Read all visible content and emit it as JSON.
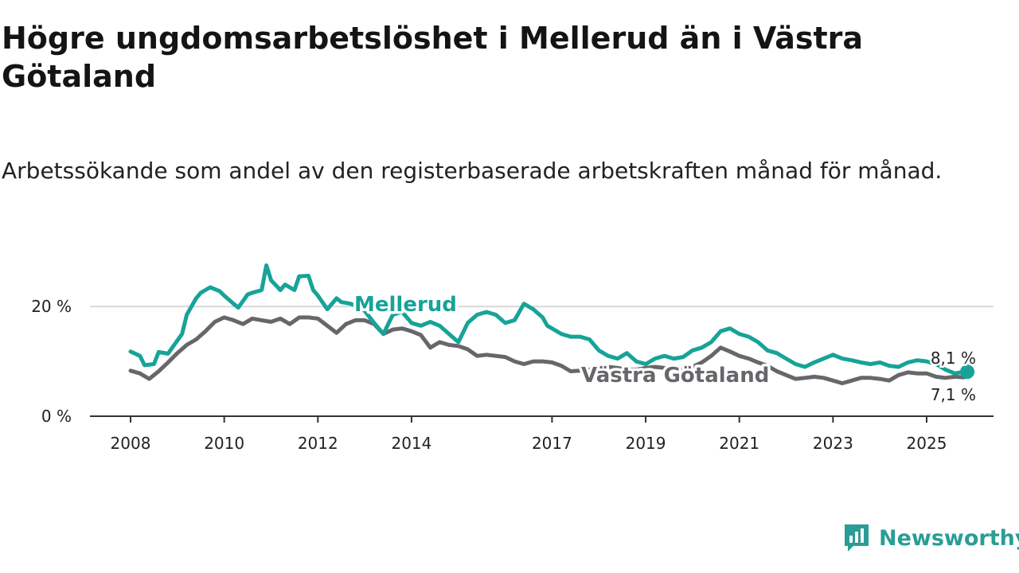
{
  "title": "Högre ungdomsarbetslöshet i Mellerud än i Västra Götaland",
  "subtitle": "Arbetssökande som andel av den registerbaserade arbetskraften månad för månad.",
  "brand": {
    "name": "Newsworthy",
    "color": "#2a9d96",
    "icon": "newsworthy-logo-icon"
  },
  "chart_data": {
    "type": "line",
    "title": "Högre ungdomsarbetslöshet i Mellerud än i Västra Götaland",
    "xlabel": "",
    "ylabel": "",
    "ylim": [
      0,
      28
    ],
    "y_ticks": [
      0,
      20
    ],
    "y_tick_labels": [
      "0 %",
      "20 %"
    ],
    "x_ticks": [
      2008,
      2010,
      2012,
      2014,
      2017,
      2019,
      2021,
      2023,
      2025
    ],
    "x_tick_labels": [
      "2008",
      "2010",
      "2012",
      "2014",
      "2017",
      "2019",
      "2021",
      "2023",
      "2025"
    ],
    "xlim": [
      2007.5,
      2026.6
    ],
    "grid": "horizontal",
    "series": [
      {
        "name": "Mellerud",
        "color": "#17a398",
        "end_label": "8,1 %",
        "x": [
          2008.0,
          2008.2,
          2008.3,
          2008.5,
          2008.6,
          2008.8,
          2008.9,
          2009.1,
          2009.2,
          2009.4,
          2009.5,
          2009.7,
          2009.9,
          2010.0,
          2010.2,
          2010.3,
          2010.5,
          2010.6,
          2010.8,
          2010.9,
          2011.0,
          2011.2,
          2011.3,
          2011.5,
          2011.6,
          2011.8,
          2011.9,
          2012.0,
          2012.2,
          2012.4,
          2012.5,
          2012.7,
          2012.9,
          2013.0,
          2013.2,
          2013.4,
          2013.6,
          2013.8,
          2014.0,
          2014.2,
          2014.4,
          2014.6,
          2014.8,
          2015.0,
          2015.2,
          2015.4,
          2015.6,
          2015.8,
          2016.0,
          2016.2,
          2016.4,
          2016.6,
          2016.8,
          2016.9,
          2017.0,
          2017.2,
          2017.4,
          2017.6,
          2017.8,
          2018.0,
          2018.2,
          2018.4,
          2018.6,
          2018.8,
          2019.0,
          2019.2,
          2019.4,
          2019.6,
          2019.8,
          2020.0,
          2020.2,
          2020.4,
          2020.6,
          2020.8,
          2021.0,
          2021.2,
          2021.4,
          2021.6,
          2021.8,
          2022.0,
          2022.2,
          2022.4,
          2022.6,
          2022.8,
          2023.0,
          2023.2,
          2023.4,
          2023.6,
          2023.8,
          2024.0,
          2024.2,
          2024.4,
          2024.6,
          2024.8,
          2025.0,
          2025.2,
          2025.4,
          2025.6,
          2025.8
        ],
        "values": [
          11.8,
          11.0,
          9.3,
          9.5,
          11.7,
          11.4,
          12.6,
          15.0,
          18.5,
          21.5,
          22.5,
          23.5,
          22.8,
          22.0,
          20.5,
          19.8,
          22.2,
          22.5,
          23.0,
          27.5,
          24.8,
          23.0,
          24.0,
          23.0,
          25.5,
          25.6,
          23.0,
          22.0,
          19.5,
          21.5,
          20.8,
          20.5,
          19.8,
          19.2,
          17.0,
          15.0,
          18.5,
          19.0,
          17.0,
          16.5,
          17.2,
          16.5,
          15.0,
          13.5,
          17.0,
          18.5,
          19.0,
          18.5,
          17.0,
          17.5,
          20.5,
          19.5,
          18.0,
          16.5,
          16.0,
          15.0,
          14.5,
          14.5,
          14.0,
          12.0,
          11.0,
          10.5,
          11.5,
          10.0,
          9.5,
          10.5,
          11.0,
          10.5,
          10.8,
          12.0,
          12.5,
          13.5,
          15.5,
          16.0,
          15.0,
          14.5,
          13.5,
          12.0,
          11.5,
          10.5,
          9.5,
          9.0,
          9.8,
          10.5,
          11.2,
          10.5,
          10.2,
          9.8,
          9.5,
          9.8,
          9.2,
          9.0,
          9.8,
          10.2,
          10.0,
          9.5,
          8.5,
          7.8,
          8.1
        ]
      },
      {
        "name": "Västra Götaland",
        "color": "#67676b",
        "end_label": "7,1 %",
        "x": [
          2008.0,
          2008.2,
          2008.4,
          2008.6,
          2008.8,
          2009.0,
          2009.2,
          2009.4,
          2009.6,
          2009.8,
          2010.0,
          2010.2,
          2010.4,
          2010.6,
          2010.8,
          2011.0,
          2011.2,
          2011.4,
          2011.6,
          2011.8,
          2012.0,
          2012.2,
          2012.4,
          2012.6,
          2012.8,
          2013.0,
          2013.2,
          2013.4,
          2013.6,
          2013.8,
          2014.0,
          2014.2,
          2014.4,
          2014.6,
          2014.8,
          2015.0,
          2015.2,
          2015.4,
          2015.6,
          2015.8,
          2016.0,
          2016.2,
          2016.4,
          2016.6,
          2016.8,
          2017.0,
          2017.2,
          2017.4,
          2017.6,
          2017.8,
          2018.0,
          2018.2,
          2018.4,
          2018.6,
          2018.8,
          2019.0,
          2019.2,
          2019.4,
          2019.6,
          2019.8,
          2020.0,
          2020.2,
          2020.4,
          2020.6,
          2020.8,
          2021.0,
          2021.2,
          2021.4,
          2021.6,
          2021.8,
          2022.0,
          2022.2,
          2022.4,
          2022.6,
          2022.8,
          2023.0,
          2023.2,
          2023.4,
          2023.6,
          2023.8,
          2024.0,
          2024.2,
          2024.4,
          2024.6,
          2024.8,
          2025.0,
          2025.2,
          2025.4,
          2025.6,
          2025.8
        ],
        "values": [
          8.3,
          7.8,
          6.8,
          8.2,
          9.8,
          11.5,
          13.0,
          14.0,
          15.5,
          17.2,
          18.0,
          17.5,
          16.8,
          17.8,
          17.5,
          17.2,
          17.8,
          16.8,
          18.0,
          18.0,
          17.8,
          16.5,
          15.2,
          16.8,
          17.5,
          17.5,
          16.8,
          15.0,
          15.8,
          16.0,
          15.5,
          14.8,
          12.5,
          13.5,
          13.0,
          12.8,
          12.2,
          11.0,
          11.2,
          11.0,
          10.8,
          10.0,
          9.5,
          10.0,
          10.0,
          9.8,
          9.2,
          8.2,
          8.3,
          8.5,
          8.8,
          9.0,
          8.8,
          8.5,
          8.5,
          8.8,
          9.0,
          8.8,
          8.5,
          8.5,
          9.0,
          9.8,
          11.0,
          12.5,
          11.8,
          11.0,
          10.5,
          9.8,
          9.2,
          8.2,
          7.5,
          6.8,
          7.0,
          7.2,
          7.0,
          6.5,
          6.0,
          6.5,
          7.0,
          7.0,
          6.8,
          6.5,
          7.5,
          8.0,
          7.8,
          7.8,
          7.2,
          7.0,
          7.2,
          7.1
        ]
      }
    ]
  }
}
